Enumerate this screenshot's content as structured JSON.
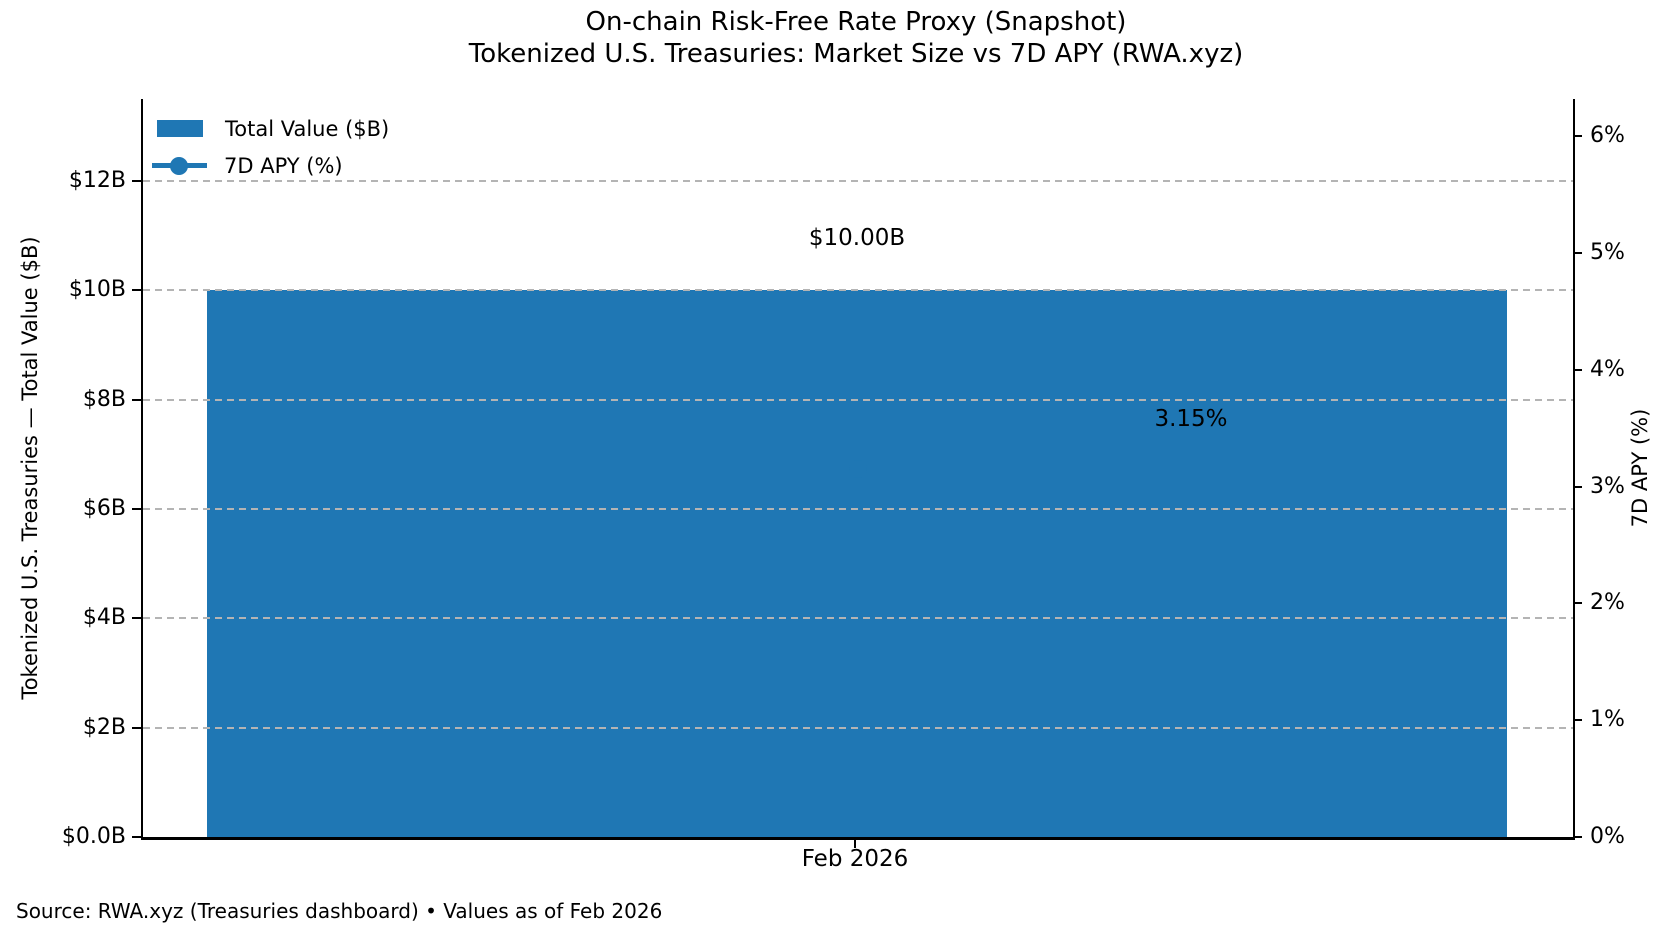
{
  "title": {
    "line1": "On-chain Risk-Free Rate Proxy (Snapshot)",
    "line2": "Tokenized U.S. Treasuries: Market Size vs 7D APY (RWA.xyz)"
  },
  "source_note": "Source: RWA.xyz (Treasuries dashboard) • Values as of Feb 2026",
  "colors": {
    "series_blue": "#1f77b4",
    "grid": "#b4b4b4",
    "text": "#000000",
    "background": "#ffffff"
  },
  "chart_data": {
    "type": "bar",
    "categories": [
      "Feb 2026"
    ],
    "series": [
      {
        "name": "Total Value ($B)",
        "type": "bar",
        "axis": "left",
        "values": [
          10.0
        ],
        "data_labels": [
          "$10.00B"
        ],
        "color": "#1f77b4"
      },
      {
        "name": "7D APY (%)",
        "type": "line",
        "axis": "right",
        "values": [
          3.15
        ],
        "data_labels": [
          "3.15%"
        ],
        "color": "#1f77b4",
        "marker": "circle"
      }
    ],
    "title": "On-chain Risk-Free Rate Proxy (Snapshot)",
    "subtitle": "Tokenized U.S. Treasuries: Market Size vs 7D APY (RWA.xyz)",
    "xlabel": "",
    "ylabel_left": "Tokenized U.S. Treasuries — Total Value ($B)",
    "ylabel_right": "7D APY (%)",
    "ylim_left": [
      0,
      13.5
    ],
    "ylim_right": [
      0,
      6.32
    ],
    "yticks_left": [
      {
        "value": 0,
        "label": "$0.0B"
      },
      {
        "value": 2,
        "label": "$2B"
      },
      {
        "value": 4,
        "label": "$4B"
      },
      {
        "value": 6,
        "label": "$6B"
      },
      {
        "value": 8,
        "label": "$8B"
      },
      {
        "value": 10,
        "label": "$10B"
      },
      {
        "value": 12,
        "label": "$12B"
      }
    ],
    "yticks_right": [
      {
        "value": 0,
        "label": "0%"
      },
      {
        "value": 1,
        "label": "1%"
      },
      {
        "value": 2,
        "label": "2%"
      },
      {
        "value": 3,
        "label": "3%"
      },
      {
        "value": 4,
        "label": "4%"
      },
      {
        "value": 5,
        "label": "5%"
      },
      {
        "value": 6,
        "label": "6%"
      }
    ],
    "grid": {
      "on": true,
      "style": "dashed",
      "axis": "left-y",
      "color": "#b4b4b4",
      "above_bars": true
    },
    "legend": {
      "position": "upper-left",
      "frame": false,
      "entries": [
        "Total Value ($B)",
        "7D APY (%)"
      ]
    }
  }
}
